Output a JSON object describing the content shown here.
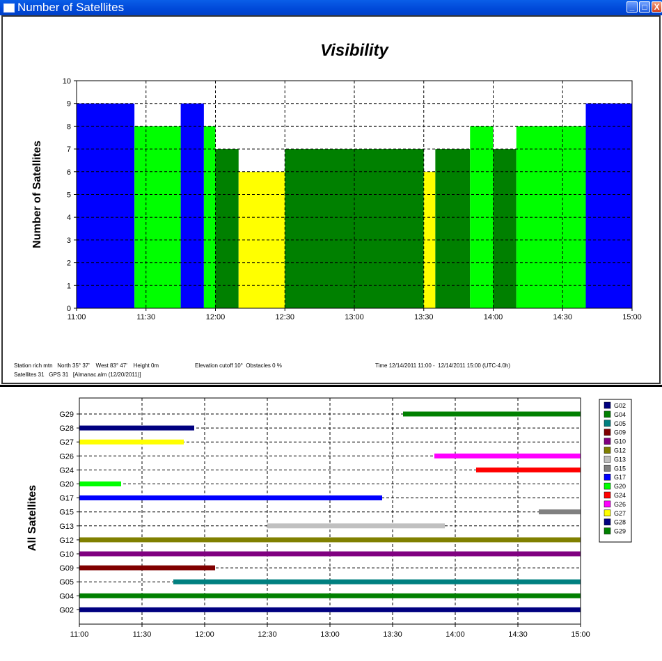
{
  "window": {
    "title": "Number of Satellites",
    "minimize_glyph": "_",
    "maximize_glyph": "□",
    "close_glyph": "X"
  },
  "info": {
    "station": "Station rich mtn   North 35° 37'    West 83° 47'    Height 0m",
    "elevation": "Elevation cutoff 10°  Obstacles 0 %",
    "time": "Time 12/14/2011 11:00 -  12/14/2011 15:00 (UTC-4.0h)",
    "satellites": "Satellites 31   GPS 31   [Almanac.alm (12/20/2011)]"
  },
  "chart_data": [
    {
      "type": "bar",
      "title": "Visibility",
      "ylabel": "Number of Satellites",
      "xlabel": "",
      "x_range": [
        "11:00",
        "15:00"
      ],
      "ylim": [
        0,
        10
      ],
      "xticks": [
        "11:00",
        "11:30",
        "12:00",
        "12:30",
        "13:00",
        "13:30",
        "14:00",
        "14:30",
        "15:00"
      ],
      "yticks": [
        "0",
        "1",
        "2",
        "3",
        "4",
        "5",
        "6",
        "7",
        "8",
        "9",
        "10"
      ],
      "grid": true,
      "segments": [
        {
          "start": "11:00",
          "end": "11:25",
          "value": 9,
          "color": "#0000ff"
        },
        {
          "start": "11:25",
          "end": "11:45",
          "value": 8,
          "color": "#00ff00"
        },
        {
          "start": "11:45",
          "end": "11:55",
          "value": 9,
          "color": "#0000ff"
        },
        {
          "start": "11:55",
          "end": "12:00",
          "value": 8,
          "color": "#00ff00"
        },
        {
          "start": "12:00",
          "end": "12:10",
          "value": 7,
          "color": "#008000"
        },
        {
          "start": "12:10",
          "end": "12:30",
          "value": 6,
          "color": "#ffff00"
        },
        {
          "start": "12:30",
          "end": "13:30",
          "value": 7,
          "color": "#008000"
        },
        {
          "start": "13:30",
          "end": "13:35",
          "value": 6,
          "color": "#ffff00"
        },
        {
          "start": "13:35",
          "end": "13:50",
          "value": 7,
          "color": "#008000"
        },
        {
          "start": "13:50",
          "end": "14:00",
          "value": 8,
          "color": "#00ff00"
        },
        {
          "start": "14:00",
          "end": "14:10",
          "value": 7,
          "color": "#008000"
        },
        {
          "start": "14:10",
          "end": "14:40",
          "value": 8,
          "color": "#00ff00"
        },
        {
          "start": "14:40",
          "end": "15:00",
          "value": 9,
          "color": "#0000ff"
        }
      ]
    },
    {
      "type": "timeline",
      "title": "",
      "ylabel": "All Satellites",
      "xlabel": "",
      "x_range": [
        "11:00",
        "15:00"
      ],
      "xticks": [
        "11:00",
        "11:30",
        "12:00",
        "12:30",
        "13:00",
        "13:30",
        "14:00",
        "14:30",
        "15:00"
      ],
      "grid": true,
      "legend_position": "right",
      "rows": [
        {
          "name": "G29",
          "color": "#008000",
          "start": "13:35",
          "end": "15:00"
        },
        {
          "name": "G28",
          "color": "#000080",
          "start": "11:00",
          "end": "11:55"
        },
        {
          "name": "G27",
          "color": "#ffff00",
          "start": "11:00",
          "end": "11:50"
        },
        {
          "name": "G26",
          "color": "#ff00ff",
          "start": "13:50",
          "end": "15:00"
        },
        {
          "name": "G24",
          "color": "#ff0000",
          "start": "14:10",
          "end": "15:00"
        },
        {
          "name": "G20",
          "color": "#00ff00",
          "start": "11:00",
          "end": "11:20"
        },
        {
          "name": "G17",
          "color": "#0000ff",
          "start": "11:00",
          "end": "13:25"
        },
        {
          "name": "G15",
          "color": "#808080",
          "start": "14:40",
          "end": "15:00"
        },
        {
          "name": "G13",
          "color": "#c0c0c0",
          "start": "12:30",
          "end": "13:55"
        },
        {
          "name": "G12",
          "color": "#808000",
          "start": "11:00",
          "end": "15:00"
        },
        {
          "name": "G10",
          "color": "#800080",
          "start": "11:00",
          "end": "15:00"
        },
        {
          "name": "G09",
          "color": "#800000",
          "start": "11:00",
          "end": "12:05"
        },
        {
          "name": "G05",
          "color": "#008080",
          "start": "11:45",
          "end": "15:00"
        },
        {
          "name": "G04",
          "color": "#008000",
          "start": "11:00",
          "end": "15:00"
        },
        {
          "name": "G02",
          "color": "#000080",
          "start": "11:00",
          "end": "15:00"
        }
      ],
      "legend": [
        {
          "name": "G02",
          "color": "#000080"
        },
        {
          "name": "G04",
          "color": "#008000"
        },
        {
          "name": "G05",
          "color": "#008080"
        },
        {
          "name": "G09",
          "color": "#800000"
        },
        {
          "name": "G10",
          "color": "#800080"
        },
        {
          "name": "G12",
          "color": "#808000"
        },
        {
          "name": "G13",
          "color": "#c0c0c0"
        },
        {
          "name": "G15",
          "color": "#808080"
        },
        {
          "name": "G17",
          "color": "#0000ff"
        },
        {
          "name": "G20",
          "color": "#00ff00"
        },
        {
          "name": "G24",
          "color": "#ff0000"
        },
        {
          "name": "G26",
          "color": "#ff00ff"
        },
        {
          "name": "G27",
          "color": "#ffff00"
        },
        {
          "name": "G28",
          "color": "#000080"
        },
        {
          "name": "G29",
          "color": "#008000"
        }
      ]
    }
  ]
}
